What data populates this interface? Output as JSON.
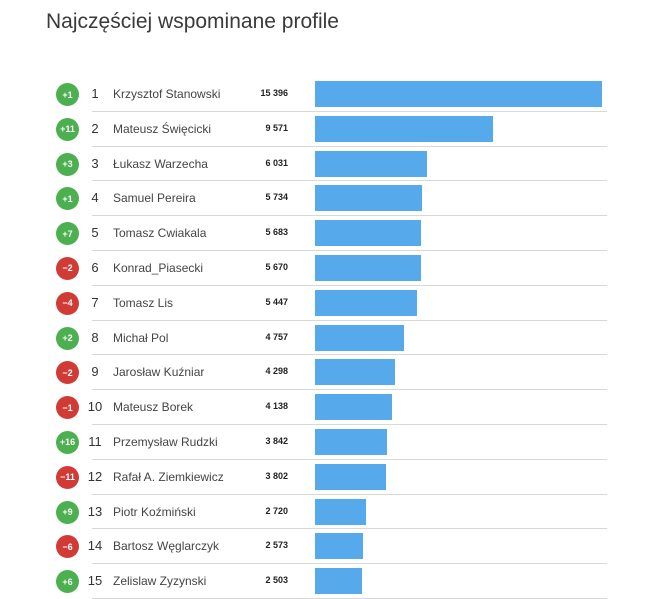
{
  "title": "Najczęściej wspominane profile",
  "colors": {
    "badge_positive": "#4caf50",
    "badge_negative": "#d03b35",
    "bar": "#56aaec"
  },
  "chart_data": {
    "type": "bar",
    "orientation": "horizontal",
    "title": "Najczęściej wspominane profile",
    "grid": false,
    "legend": "none",
    "xlim": [
      0,
      15396
    ],
    "rows": [
      {
        "rank": "1",
        "name": "Krzysztof Stanowski",
        "value": 15396,
        "value_label": "15 396",
        "change": "+1",
        "change_direction": "up"
      },
      {
        "rank": "2",
        "name": "Mateusz Święcicki",
        "value": 9571,
        "value_label": "9 571",
        "change": "+11",
        "change_direction": "up"
      },
      {
        "rank": "3",
        "name": "Łukasz Warzecha",
        "value": 6031,
        "value_label": "6 031",
        "change": "+3",
        "change_direction": "up"
      },
      {
        "rank": "4",
        "name": "Samuel Pereira",
        "value": 5734,
        "value_label": "5 734",
        "change": "+1",
        "change_direction": "up"
      },
      {
        "rank": "5",
        "name": "Tomasz Cwiakala",
        "value": 5683,
        "value_label": "5 683",
        "change": "+7",
        "change_direction": "up"
      },
      {
        "rank": "6",
        "name": "Konrad_Piasecki",
        "value": 5670,
        "value_label": "5 670",
        "change": "−2",
        "change_direction": "down"
      },
      {
        "rank": "7",
        "name": "Tomasz Lis",
        "value": 5447,
        "value_label": "5 447",
        "change": "−4",
        "change_direction": "down"
      },
      {
        "rank": "8",
        "name": "Michał Pol",
        "value": 4757,
        "value_label": "4 757",
        "change": "+2",
        "change_direction": "up"
      },
      {
        "rank": "9",
        "name": "Jarosław Kuźniar",
        "value": 4298,
        "value_label": "4 298",
        "change": "−2",
        "change_direction": "down"
      },
      {
        "rank": "10",
        "name": "Mateusz Borek",
        "value": 4138,
        "value_label": "4 138",
        "change": "−1",
        "change_direction": "down"
      },
      {
        "rank": "11",
        "name": "Przemysław Rudzki",
        "value": 3842,
        "value_label": "3 842",
        "change": "+16",
        "change_direction": "up"
      },
      {
        "rank": "12",
        "name": "Rafał A. Ziemkiewicz",
        "value": 3802,
        "value_label": "3 802",
        "change": "−11",
        "change_direction": "down"
      },
      {
        "rank": "13",
        "name": "Piotr Koźmiński",
        "value": 2720,
        "value_label": "2 720",
        "change": "+9",
        "change_direction": "up"
      },
      {
        "rank": "14",
        "name": "Bartosz Węglarczyk",
        "value": 2573,
        "value_label": "2 573",
        "change": "−6",
        "change_direction": "down"
      },
      {
        "rank": "15",
        "name": "Zelislaw Zyzynski",
        "value": 2503,
        "value_label": "2 503",
        "change": "+6",
        "change_direction": "up"
      }
    ]
  }
}
